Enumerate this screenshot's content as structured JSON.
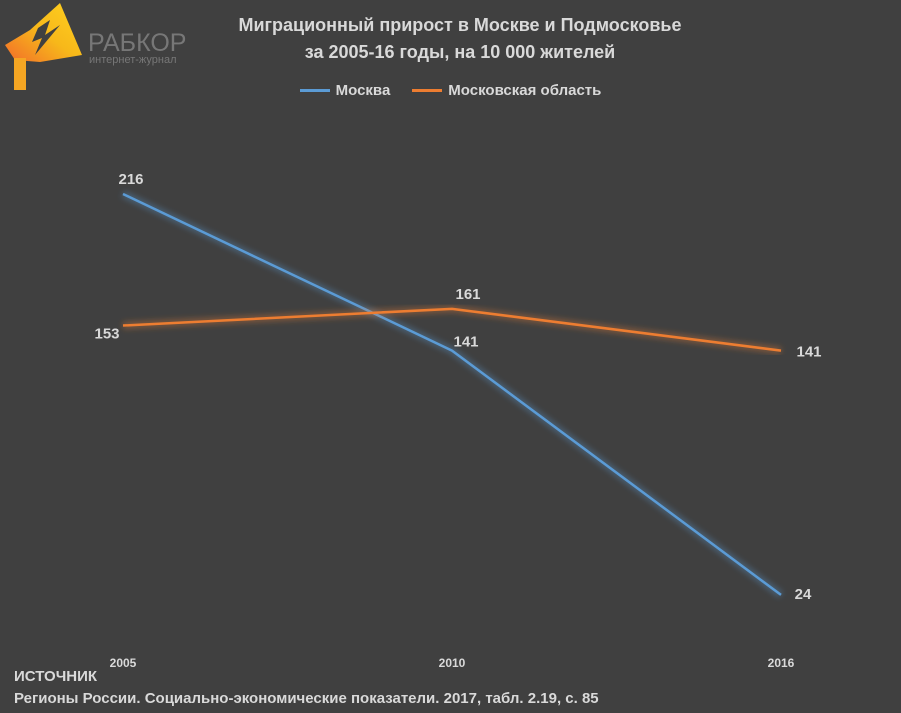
{
  "logo": {
    "text": "РАБКОР",
    "subtitle": "интернет-журнал"
  },
  "chart_data": {
    "type": "line",
    "title": [
      "Миграционный прирост в Москве и Подмосковье",
      "за 2005-16 годы, на 10 000 жителей"
    ],
    "categories": [
      "2005",
      "2010",
      "2016"
    ],
    "series": [
      {
        "name": "Москва",
        "values": [
          216,
          141,
          24
        ],
        "color": "#5b9bd5"
      },
      {
        "name": "Московская область",
        "values": [
          153,
          161,
          141
        ],
        "color": "#ed7d31"
      }
    ],
    "ylim": [
      0,
      250
    ],
    "grid": false,
    "yaxis_visible": false,
    "data_labels": true,
    "legend": "top"
  },
  "source": {
    "heading": "ИСТОЧНИК",
    "text": "Регионы России. Социально-экономические показатели. 2017, табл. 2.19, с. 85"
  }
}
